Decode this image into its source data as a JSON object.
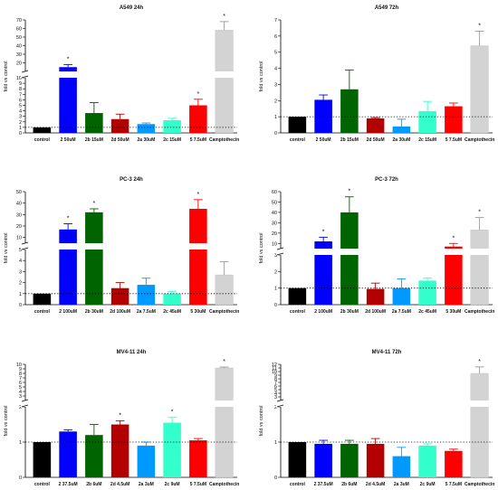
{
  "colors": [
    "#000000",
    "#0000ff",
    "#006400",
    "#b30000",
    "#0099ff",
    "#33ffcc",
    "#ff0000",
    "#d3d3d3"
  ],
  "chart_data": [
    {
      "type": "bar",
      "title": "A549 24h",
      "ylabel": "fold vs control",
      "categories": [
        "control",
        "2   50uM",
        "2b 15uM",
        "2d 50uM",
        "2a 30uM",
        "2c 15uM",
        "5   7.5uM",
        "Camptothecin"
      ],
      "values": [
        1.0,
        15,
        3.6,
        2.5,
        1.6,
        2.3,
        5.0,
        58
      ],
      "errors": [
        0,
        3,
        1.9,
        0.9,
        0.2,
        0.35,
        1.1,
        10
      ],
      "significant": [
        false,
        true,
        false,
        false,
        false,
        false,
        true,
        true
      ],
      "y_break": [
        10,
        10
      ],
      "lower_ticks": [
        "0",
        "1",
        "2",
        "3",
        "4",
        "5",
        "6",
        "7",
        "8",
        "9"
      ],
      "upper_ticks": [
        "10",
        "20",
        "30",
        "40",
        "50",
        "60",
        "70"
      ],
      "ylim": [
        0,
        70
      ],
      "reference_line": 1
    },
    {
      "type": "bar",
      "title": "A549 72h",
      "ylabel": "fold vs control",
      "categories": [
        "control",
        "2   50uM",
        "2b 15uM",
        "2d 50uM",
        "2a 30uM",
        "2c 15uM",
        "5   7.5uM",
        "Camptothecin"
      ],
      "values": [
        1.0,
        2.05,
        2.7,
        0.9,
        0.4,
        1.35,
        1.65,
        5.4
      ],
      "errors": [
        0,
        0.3,
        1.2,
        0.05,
        0.45,
        0.6,
        0.2,
        0.9
      ],
      "significant": [
        false,
        false,
        false,
        false,
        false,
        false,
        false,
        true
      ],
      "y_break": null,
      "lower_ticks": [
        "0",
        "1",
        "2",
        "3",
        "4",
        "5",
        "6",
        "7"
      ],
      "upper_ticks": [],
      "ylim": [
        0,
        7
      ],
      "reference_line": 1
    },
    {
      "type": "bar",
      "title": "PC-3 24h",
      "ylabel": "fold vs control",
      "categories": [
        "control",
        "2   100uM",
        "2b 30uM",
        "2d 100uM",
        "2a 7.5uM",
        "2c 45uM",
        "5   30uM",
        "Camptothecin"
      ],
      "values": [
        1.0,
        17,
        32,
        1.5,
        1.8,
        1.0,
        35,
        2.7
      ],
      "errors": [
        0,
        5,
        3,
        0.5,
        0.6,
        0.2,
        8,
        1.2
      ],
      "significant": [
        false,
        true,
        true,
        false,
        false,
        false,
        true,
        false
      ],
      "y_break": [
        5,
        5
      ],
      "lower_ticks": [
        "0",
        "1",
        "2",
        "3",
        "4",
        "5"
      ],
      "upper_ticks": [
        "10",
        "20",
        "30",
        "40",
        "50"
      ],
      "ylim": [
        0,
        50
      ],
      "reference_line": 1
    },
    {
      "type": "bar",
      "title": "PC-3 72h",
      "ylabel": "fold vs control",
      "categories": [
        "control",
        "2   100uM",
        "2b 30uM",
        "2d 100uM",
        "2a 7.5uM",
        "2c 45uM",
        "5   30uM",
        "Camptothecin"
      ],
      "values": [
        1.0,
        12,
        40,
        0.95,
        1.0,
        1.45,
        7.0,
        23
      ],
      "errors": [
        0,
        4,
        15,
        0.35,
        0.55,
        0.15,
        3,
        12
      ],
      "significant": [
        false,
        true,
        true,
        false,
        false,
        false,
        true,
        true
      ],
      "y_break": [
        3,
        5
      ],
      "lower_ticks": [
        "0",
        "1",
        "2",
        "3"
      ],
      "upper_ticks": [
        "10",
        "20",
        "30",
        "40",
        "50",
        "60"
      ],
      "ylim": [
        0,
        60
      ],
      "reference_line": 1
    },
    {
      "type": "bar",
      "title": "MV4-11 24h",
      "ylabel": "fold vs control",
      "categories": [
        "control",
        "2   37.5uM",
        "2b 6uM",
        "2d 4.5uM",
        "2a 3uM",
        "2c 9uM",
        "5   7.5uM",
        "Camptothecin"
      ],
      "values": [
        1.0,
        1.3,
        1.2,
        1.5,
        0.9,
        1.55,
        1.05,
        9.2
      ],
      "errors": [
        0,
        0.05,
        0.3,
        0.1,
        0.1,
        0.15,
        0.05,
        0.2
      ],
      "significant": [
        false,
        false,
        false,
        true,
        false,
        true,
        false,
        true
      ],
      "y_break": [
        2,
        2
      ],
      "lower_ticks": [
        "0",
        "1",
        "2"
      ],
      "upper_ticks": [
        "3",
        "4",
        "5",
        "6",
        "7",
        "8",
        "9",
        "10"
      ],
      "ylim": [
        0,
        10
      ],
      "reference_line": 1
    },
    {
      "type": "bar",
      "title": "MV4-11 72h",
      "ylabel": "fold vs control",
      "categories": [
        "control",
        "2   37.5uM",
        "2b 6uM",
        "2d 4.5uM",
        "2a 3uM",
        "2c 9uM",
        "5   7.5uM",
        "Camptothecin"
      ],
      "values": [
        1.0,
        0.95,
        0.95,
        0.95,
        0.6,
        0.9,
        0.75,
        9.5
      ],
      "errors": [
        0,
        0.1,
        0.1,
        0.15,
        0.25,
        0.05,
        0.05,
        1.8
      ],
      "significant": [
        false,
        false,
        false,
        false,
        false,
        false,
        false,
        true
      ],
      "y_break": [
        2,
        2
      ],
      "lower_ticks": [
        "0",
        "1",
        "2"
      ],
      "upper_ticks": [
        "3",
        "4",
        "5",
        "6",
        "7",
        "8",
        "9",
        "10",
        "11",
        "12"
      ],
      "ylim": [
        0,
        12
      ],
      "reference_line": 1
    }
  ]
}
